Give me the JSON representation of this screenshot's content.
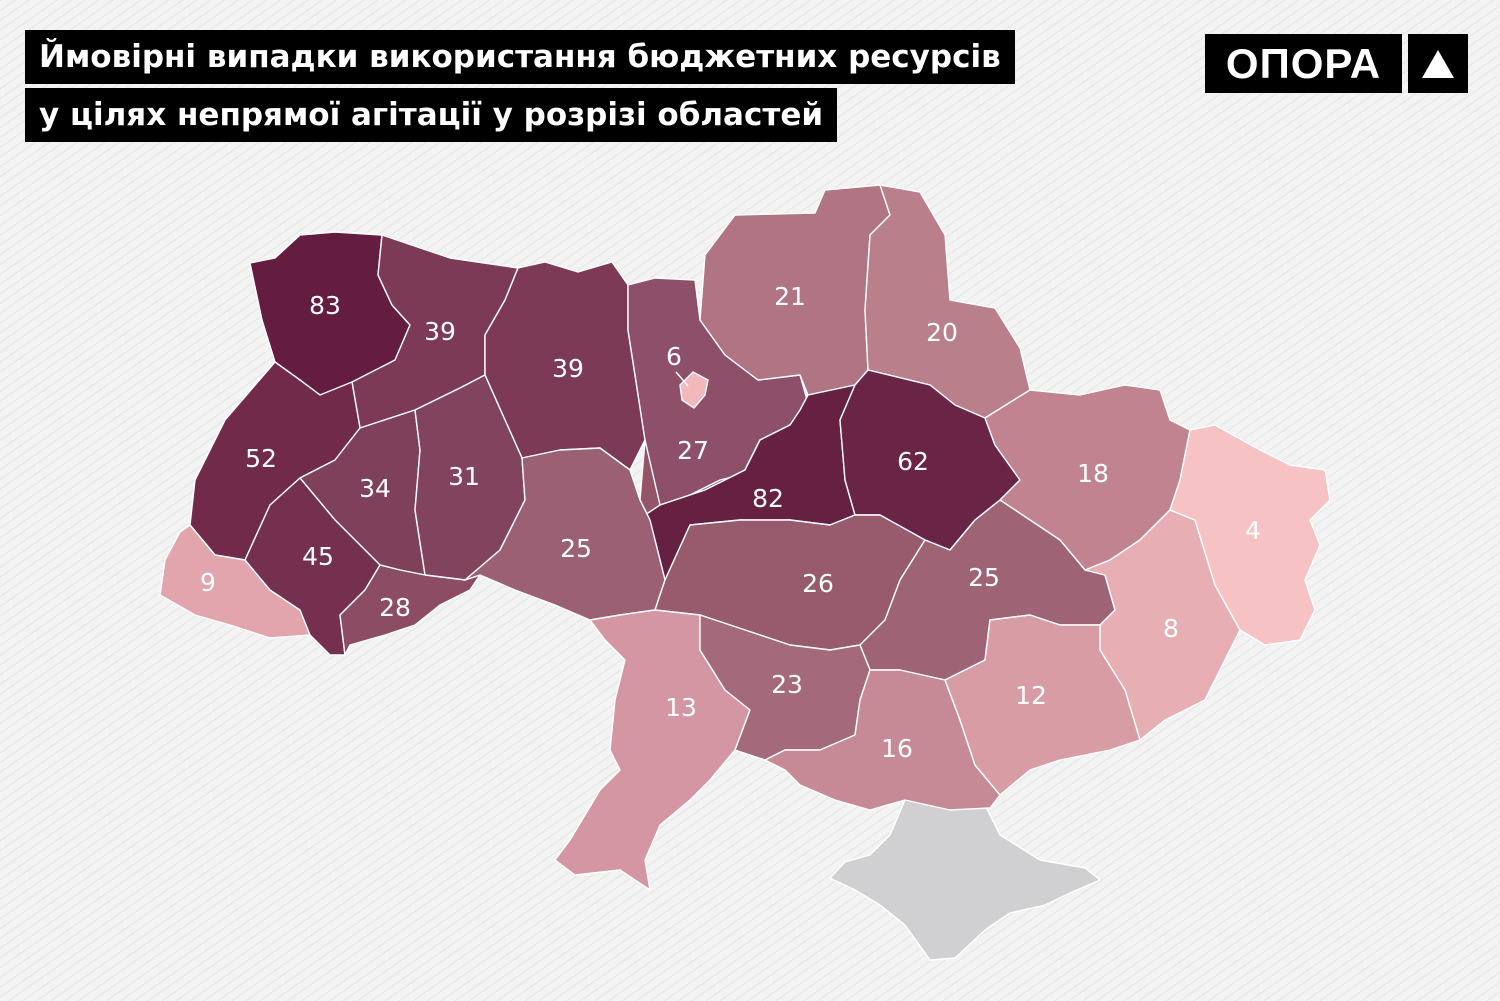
{
  "title": {
    "line1": "Ймовірні випадки використання бюджетних ресурсів",
    "line2": "у цілях непрямої агітації у розрізі областей"
  },
  "logo": {
    "text": "ОПОРА",
    "mark_icon": "triangle-up-icon"
  },
  "colors": {
    "background": "#f3f3f3",
    "crimea": "#d0d0d2",
    "kyiv_city": "#f2b9bd",
    "label": "#ffffff"
  },
  "regions": [
    {
      "id": "volyn",
      "value": "83",
      "color": "#641c40"
    },
    {
      "id": "rivne",
      "value": "39",
      "color": "#7c3a56"
    },
    {
      "id": "zhytomyr",
      "value": "39",
      "color": "#7c3a56"
    },
    {
      "id": "kyiv",
      "value": "6",
      "color": "#8e5069"
    },
    {
      "id": "chernihiv",
      "value": "21",
      "color": "#b07482"
    },
    {
      "id": "sumy",
      "value": "20",
      "color": "#b97f8b"
    },
    {
      "id": "lviv",
      "value": "52",
      "color": "#712a4a"
    },
    {
      "id": "ternopil",
      "value": "34",
      "color": "#7f4059"
    },
    {
      "id": "khmelnytskyi",
      "value": "31",
      "color": "#82445d"
    },
    {
      "id": "cherkasy",
      "value": "27",
      "color": "#945568"
    },
    {
      "id": "poltava",
      "value": "82",
      "color": "#662042"
    },
    {
      "id": "kharkiv",
      "value": "62",
      "color": "#6a2446"
    },
    {
      "id": "luhansk",
      "value": "18",
      "color": "#c0838f"
    },
    {
      "id": "zakarpattia",
      "value": "9",
      "color": "#e2a5ad"
    },
    {
      "id": "ivano-frankivsk",
      "value": "45",
      "color": "#74304e"
    },
    {
      "id": "chernivtsi",
      "value": "28",
      "color": "#8c4d64"
    },
    {
      "id": "vinnytsia",
      "value": "25",
      "color": "#9c6074"
    },
    {
      "id": "kirovohrad",
      "value": "26",
      "color": "#985a6d"
    },
    {
      "id": "dnipropetrovsk",
      "value": "25",
      "color": "#9e6476"
    },
    {
      "id": "donetsk",
      "value": "8",
      "color": "#e7aeb3"
    },
    {
      "id": "luhansk-east",
      "value": "4",
      "color": "#f6c2c3"
    },
    {
      "id": "odesa",
      "value": "13",
      "color": "#d396a2"
    },
    {
      "id": "mykolaiv",
      "value": "23",
      "color": "#a46a7c"
    },
    {
      "id": "kherson",
      "value": "16",
      "color": "#c68a97"
    },
    {
      "id": "zaporizhzhia",
      "value": "12",
      "color": "#d89ca5"
    }
  ]
}
